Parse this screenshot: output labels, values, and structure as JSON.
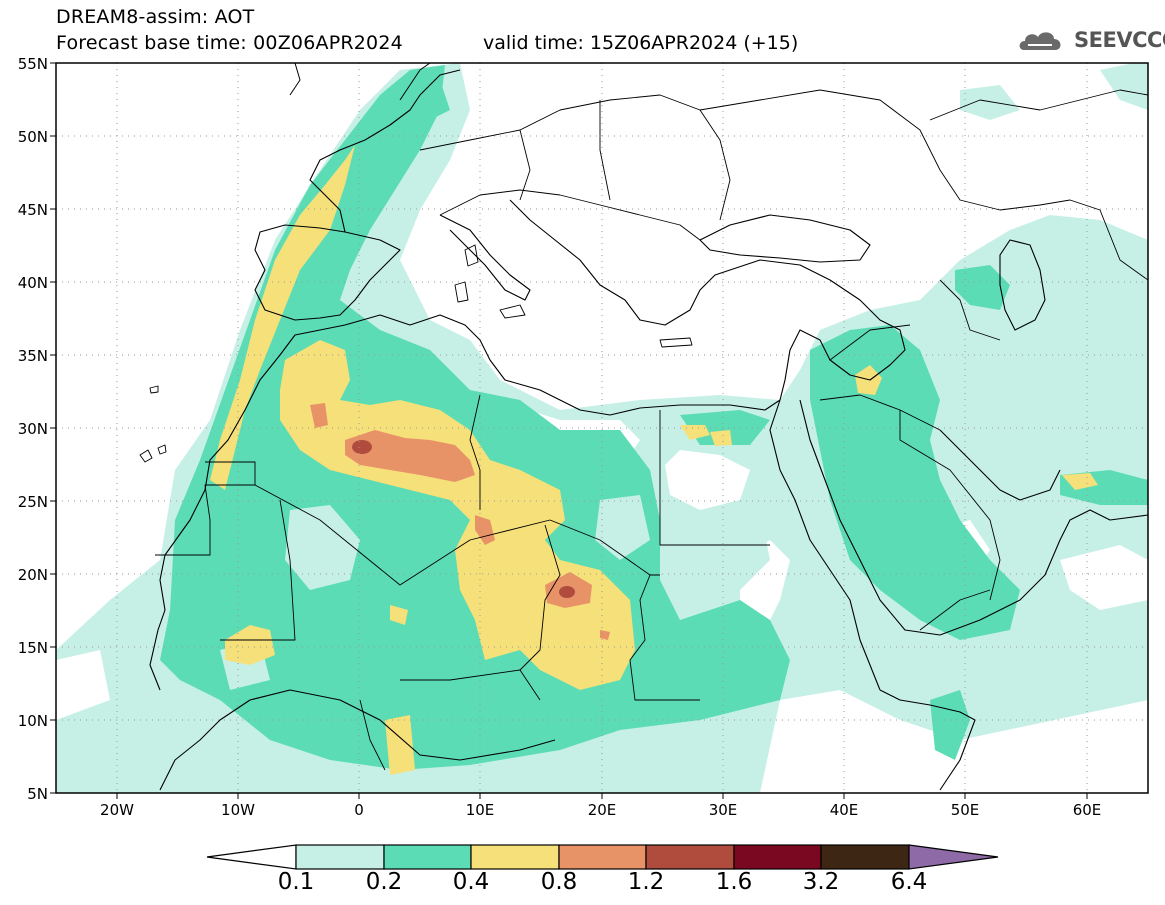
{
  "header": {
    "title": "DREAM8-assim: AOT",
    "base_time": "Forecast base time: 00Z06APR2024",
    "valid_time": "valid time: 15Z06APR2024 (+15)",
    "logo_text": "SEEVCCC"
  },
  "axes": {
    "lat_labels": [
      "55N",
      "50N",
      "45N",
      "40N",
      "35N",
      "30N",
      "25N",
      "20N",
      "15N",
      "10N",
      "5N"
    ],
    "lon_labels": [
      "20W",
      "10W",
      "0",
      "10E",
      "20E",
      "30E",
      "40E",
      "50E",
      "60E"
    ]
  },
  "colorbar": {
    "labels": [
      "0.1",
      "0.2",
      "0.4",
      "0.8",
      "1.2",
      "1.6",
      "3.2",
      "6.4"
    ],
    "colors": [
      "#ffffff",
      "#c6f0e6",
      "#5cdcb4",
      "#f6e07a",
      "#e89268",
      "#b04c3e",
      "#7a0820",
      "#3e2614",
      "#8e6aa6"
    ]
  },
  "colors": {
    "level_0_1": "#c6f0e6",
    "level_0_2": "#5cdcb4",
    "level_0_4": "#f6e07a",
    "level_0_8": "#e89268",
    "level_1_2": "#b04c3e"
  }
}
